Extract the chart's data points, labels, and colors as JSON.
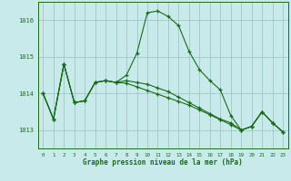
{
  "background_color": "#c8eaea",
  "grid_color": "#a0c8c8",
  "line_color": "#1a6b1a",
  "ylim": [
    1012.5,
    1016.5
  ],
  "xlim": [
    -0.5,
    23.5
  ],
  "yticks": [
    1013,
    1014,
    1015,
    1016
  ],
  "xticks": [
    0,
    1,
    2,
    3,
    4,
    5,
    6,
    7,
    8,
    9,
    10,
    11,
    12,
    13,
    14,
    15,
    16,
    17,
    18,
    19,
    20,
    21,
    22,
    23
  ],
  "xlabel": "Graphe pression niveau de la mer (hPa)",
  "series": [
    [
      1014.0,
      1013.3,
      1014.8,
      1013.75,
      1013.8,
      1014.3,
      1014.35,
      1014.3,
      1014.5,
      1015.1,
      1016.2,
      1016.25,
      1016.1,
      1015.85,
      1015.15,
      1014.65,
      1014.35,
      1014.1,
      1013.4,
      1013.0,
      1013.1,
      1013.5,
      1013.2,
      1012.95
    ],
    [
      1014.0,
      1013.3,
      1014.8,
      1013.75,
      1013.8,
      1014.3,
      1014.35,
      1014.3,
      1014.35,
      1014.3,
      1014.25,
      1014.15,
      1014.05,
      1013.9,
      1013.75,
      1013.6,
      1013.45,
      1013.3,
      1013.2,
      1013.0,
      1013.1,
      1013.5,
      1013.2,
      1012.95
    ],
    [
      1014.0,
      1013.3,
      1014.8,
      1013.75,
      1013.8,
      1014.3,
      1014.35,
      1014.3,
      1014.28,
      1014.18,
      1014.08,
      1013.98,
      1013.88,
      1013.78,
      1013.68,
      1013.55,
      1013.42,
      1013.28,
      1013.15,
      1013.0,
      1013.1,
      1013.5,
      1013.2,
      1012.95
    ]
  ],
  "figsize": [
    3.2,
    2.0
  ],
  "dpi": 100
}
